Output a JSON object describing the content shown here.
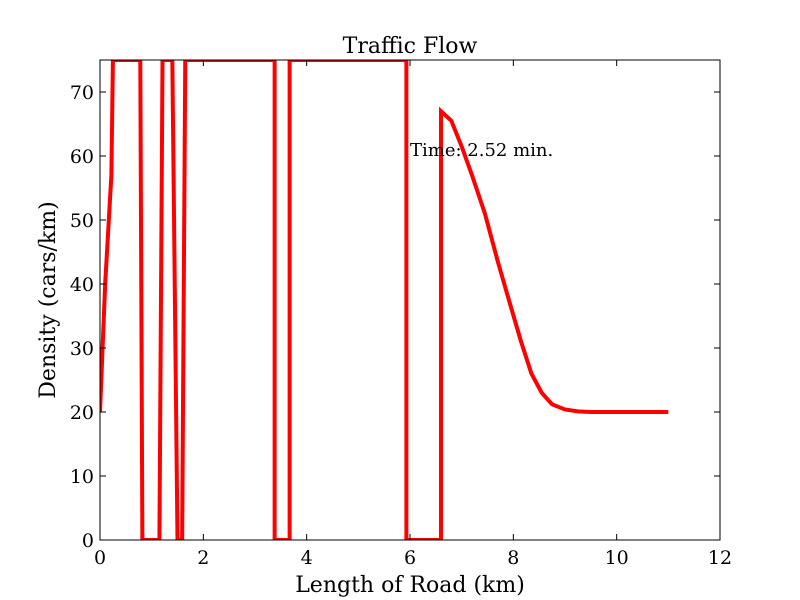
{
  "chart_data": {
    "type": "line",
    "title": "Traffic Flow",
    "xlabel": "Length of Road (km)",
    "ylabel": "Density (cars/km)",
    "xlim": [
      0,
      12
    ],
    "ylim": [
      0,
      75
    ],
    "xticks": [
      "0",
      "2",
      "4",
      "6",
      "8",
      "10",
      "12"
    ],
    "yticks": [
      "0",
      "10",
      "20",
      "30",
      "40",
      "50",
      "60",
      "70"
    ],
    "annotation": "Time: 2.52 min.",
    "grid": false,
    "series_color": "#ff0000",
    "series": [
      {
        "points": [
          [
            0.0,
            20
          ],
          [
            0.1,
            40
          ],
          [
            0.22,
            57
          ],
          [
            0.25,
            75
          ],
          [
            0.78,
            75
          ],
          [
            0.82,
            0
          ],
          [
            1.15,
            0
          ],
          [
            1.21,
            75
          ],
          [
            1.4,
            75
          ],
          [
            1.5,
            0
          ],
          [
            1.59,
            0
          ],
          [
            1.65,
            75
          ],
          [
            3.38,
            75
          ],
          [
            3.38,
            0
          ],
          [
            3.67,
            0
          ],
          [
            3.67,
            75
          ],
          [
            5.93,
            75
          ],
          [
            5.93,
            0
          ],
          [
            6.6,
            0
          ],
          [
            6.6,
            67
          ],
          [
            6.8,
            65.5
          ],
          [
            7.0,
            61.5
          ],
          [
            7.2,
            57
          ],
          [
            7.45,
            51
          ],
          [
            7.7,
            43.5
          ],
          [
            7.95,
            36.5
          ],
          [
            8.15,
            31
          ],
          [
            8.35,
            26
          ],
          [
            8.55,
            23
          ],
          [
            8.75,
            21.2
          ],
          [
            9.0,
            20.4
          ],
          [
            9.25,
            20.1
          ],
          [
            9.5,
            20
          ],
          [
            10.0,
            20
          ],
          [
            11.0,
            20
          ]
        ]
      }
    ]
  }
}
